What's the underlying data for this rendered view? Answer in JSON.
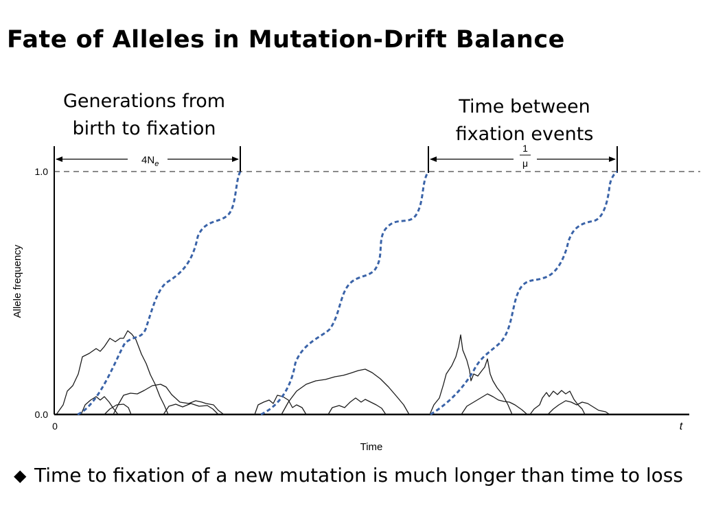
{
  "title": "Fate of Alleles in Mutation-Drift Balance",
  "callouts": {
    "left_line1": "Generations from",
    "left_line2": "birth to fixation",
    "right_line1": "Time between",
    "right_line2": "fixation events"
  },
  "diagram": {
    "interval_left_label": "4N",
    "interval_left_subscript": "e",
    "interval_right_numerator": "1",
    "interval_right_denominator": "μ",
    "y_axis_label": "Allele frequency",
    "x_axis_label": "Time",
    "y_tick_top": "1.0",
    "y_tick_bottom": "0.0",
    "x_tick_start": "0",
    "x_tick_end": "t",
    "fixing_curve_color": "#3a63a8",
    "lost_curve_color": "#1a1a1a"
  },
  "bullet": {
    "marker": "◆",
    "text": "Time to fixation of a new mutation is much longer than time to loss"
  }
}
